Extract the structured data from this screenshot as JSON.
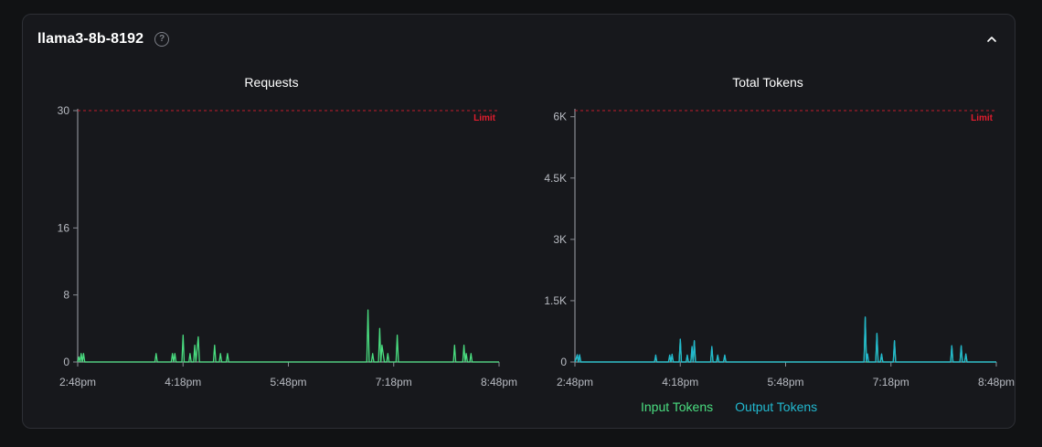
{
  "panel": {
    "model_name": "llama3-8b-8192",
    "help_icon": "question-circle-icon",
    "collapse_icon": "chevron-up-icon"
  },
  "colors": {
    "input": "#4ade80",
    "output": "#22b8cf",
    "limit": "#e11d2e",
    "axis": "#8a8d94",
    "text": "#b8bbc2"
  },
  "legend": {
    "input_label": "Input Tokens",
    "output_label": "Output Tokens"
  },
  "chart_data": [
    {
      "type": "line",
      "title": "Requests",
      "limit_label": "Limit",
      "limit": 30,
      "ylim": [
        0,
        30
      ],
      "yticks": [
        0,
        8,
        16,
        30
      ],
      "ytick_labels": [
        "0",
        "8",
        "16",
        "30"
      ],
      "xlim": [
        0,
        360
      ],
      "xticks": [
        0,
        90,
        180,
        270,
        360
      ],
      "xtick_labels": [
        "2:48pm",
        "4:18pm",
        "5:48pm",
        "7:18pm",
        "8:48pm"
      ],
      "series": [
        {
          "color_key": "input",
          "points": [
            [
              0,
              0
            ],
            [
              1,
              0.6
            ],
            [
              2,
              0
            ],
            [
              3,
              1
            ],
            [
              4,
              0
            ],
            [
              5,
              1
            ],
            [
              6,
              0
            ],
            [
              66,
              0
            ],
            [
              67,
              1
            ],
            [
              68,
              0
            ],
            [
              80,
              0
            ],
            [
              81,
              1
            ],
            [
              82,
              0
            ],
            [
              83,
              1
            ],
            [
              84,
              0
            ],
            [
              89,
              0
            ],
            [
              90,
              3.2
            ],
            [
              91,
              0
            ],
            [
              95,
              0
            ],
            [
              96,
              1
            ],
            [
              97,
              0
            ],
            [
              99,
              0
            ],
            [
              100,
              2
            ],
            [
              101,
              0
            ],
            [
              102,
              1.5
            ],
            [
              103,
              3
            ],
            [
              104,
              0
            ],
            [
              116,
              0
            ],
            [
              117,
              2
            ],
            [
              118,
              0
            ],
            [
              121,
              0
            ],
            [
              122,
              1
            ],
            [
              123,
              0
            ],
            [
              127,
              0
            ],
            [
              128,
              1
            ],
            [
              129,
              0
            ],
            [
              247,
              0
            ],
            [
              248,
              6.2
            ],
            [
              249,
              0
            ],
            [
              251,
              0
            ],
            [
              252,
              1
            ],
            [
              253,
              0
            ],
            [
              257,
              0
            ],
            [
              258,
              4
            ],
            [
              259,
              0
            ],
            [
              260,
              2
            ],
            [
              261,
              1
            ],
            [
              262,
              0
            ],
            [
              264,
              0
            ],
            [
              265,
              1
            ],
            [
              266,
              0
            ],
            [
              272,
              0
            ],
            [
              273,
              3.2
            ],
            [
              274,
              0
            ],
            [
              321,
              0
            ],
            [
              322,
              2
            ],
            [
              323,
              0
            ],
            [
              329,
              0
            ],
            [
              330,
              2
            ],
            [
              331,
              0
            ],
            [
              332,
              1
            ],
            [
              333,
              0
            ],
            [
              335,
              0
            ],
            [
              336,
              1
            ],
            [
              337,
              0
            ],
            [
              360,
              0
            ]
          ]
        }
      ]
    },
    {
      "type": "line",
      "title": "Total Tokens",
      "limit_label": "Limit",
      "limit": 6150,
      "ylim": [
        0,
        6150
      ],
      "yticks": [
        0,
        1500,
        3000,
        4500,
        6000
      ],
      "ytick_labels": [
        "0",
        "1.5K",
        "3K",
        "4.5K",
        "6K"
      ],
      "xlim": [
        0,
        360
      ],
      "xticks": [
        0,
        90,
        180,
        270,
        360
      ],
      "xtick_labels": [
        "2:48pm",
        "4:18pm",
        "5:48pm",
        "7:18pm",
        "8:48pm"
      ],
      "series": [
        {
          "color_key": "input",
          "points": [
            [
              0,
              0
            ],
            [
              2,
              150
            ],
            [
              3,
              0
            ],
            [
              4,
              150
            ],
            [
              5,
              0
            ],
            [
              68,
              0
            ],
            [
              69,
              130
            ],
            [
              70,
              0
            ],
            [
              80,
              0
            ],
            [
              81,
              150
            ],
            [
              82,
              0
            ],
            [
              83,
              150
            ],
            [
              84,
              0
            ],
            [
              89,
              0
            ],
            [
              90,
              550
            ],
            [
              91,
              0
            ],
            [
              95,
              0
            ],
            [
              96,
              150
            ],
            [
              97,
              0
            ],
            [
              99,
              0
            ],
            [
              100,
              350
            ],
            [
              101,
              0
            ],
            [
              102,
              500
            ],
            [
              103,
              0
            ],
            [
              116,
              0
            ],
            [
              117,
              350
            ],
            [
              118,
              0
            ],
            [
              121,
              0
            ],
            [
              122,
              150
            ],
            [
              123,
              0
            ],
            [
              127,
              0
            ],
            [
              128,
              150
            ],
            [
              129,
              0
            ],
            [
              247,
              0
            ],
            [
              248,
              1080
            ],
            [
              249,
              0
            ],
            [
              257,
              0
            ],
            [
              258,
              680
            ],
            [
              259,
              0
            ],
            [
              261,
              0
            ],
            [
              262,
              180
            ],
            [
              263,
              0
            ],
            [
              272,
              0
            ],
            [
              273,
              500
            ],
            [
              274,
              0
            ],
            [
              321,
              0
            ],
            [
              322,
              380
            ],
            [
              323,
              0
            ],
            [
              329,
              0
            ],
            [
              330,
              380
            ],
            [
              331,
              0
            ],
            [
              333,
              0
            ],
            [
              334,
              180
            ],
            [
              335,
              0
            ],
            [
              360,
              0
            ]
          ]
        },
        {
          "color_key": "output",
          "points": [
            [
              0,
              0
            ],
            [
              2,
              180
            ],
            [
              3,
              0
            ],
            [
              4,
              180
            ],
            [
              5,
              0
            ],
            [
              68,
              0
            ],
            [
              69,
              170
            ],
            [
              70,
              0
            ],
            [
              80,
              0
            ],
            [
              81,
              170
            ],
            [
              82,
              0
            ],
            [
              83,
              190
            ],
            [
              84,
              0
            ],
            [
              89,
              0
            ],
            [
              90,
              560
            ],
            [
              91,
              0
            ],
            [
              95,
              0
            ],
            [
              96,
              170
            ],
            [
              97,
              0
            ],
            [
              99,
              0
            ],
            [
              100,
              380
            ],
            [
              101,
              0
            ],
            [
              102,
              520
            ],
            [
              103,
              0
            ],
            [
              116,
              0
            ],
            [
              117,
              380
            ],
            [
              118,
              0
            ],
            [
              121,
              0
            ],
            [
              122,
              170
            ],
            [
              123,
              0
            ],
            [
              127,
              0
            ],
            [
              128,
              170
            ],
            [
              129,
              0
            ],
            [
              247,
              0
            ],
            [
              248,
              1100
            ],
            [
              249,
              0
            ],
            [
              250,
              200
            ],
            [
              251,
              0
            ],
            [
              257,
              0
            ],
            [
              258,
              700
            ],
            [
              259,
              0
            ],
            [
              261,
              0
            ],
            [
              262,
              200
            ],
            [
              263,
              0
            ],
            [
              272,
              0
            ],
            [
              273,
              520
            ],
            [
              274,
              0
            ],
            [
              321,
              0
            ],
            [
              322,
              400
            ],
            [
              323,
              0
            ],
            [
              329,
              0
            ],
            [
              330,
              400
            ],
            [
              331,
              0
            ],
            [
              333,
              0
            ],
            [
              334,
              200
            ],
            [
              335,
              0
            ],
            [
              360,
              0
            ]
          ]
        }
      ]
    }
  ]
}
